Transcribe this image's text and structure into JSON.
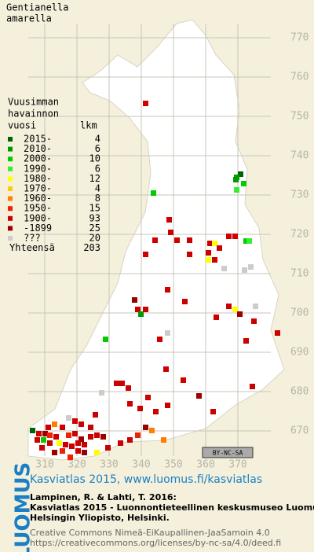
{
  "title": [
    "Gentianella",
    "amarella"
  ],
  "legend": {
    "heading": [
      "Vuusimman",
      "havainnon",
      "vuosi"
    ],
    "count_heading": "lkm",
    "entries": [
      {
        "label": "2015-",
        "count": 4,
        "color": "#006400"
      },
      {
        "label": "2010-",
        "count": 6,
        "color": "#009a00"
      },
      {
        "label": "2000-",
        "count": 10,
        "color": "#00cc00"
      },
      {
        "label": "1990-",
        "count": 6,
        "color": "#33ee33"
      },
      {
        "label": "1980-",
        "count": 12,
        "color": "#ffff00"
      },
      {
        "label": "1970-",
        "count": 4,
        "color": "#ffcc00"
      },
      {
        "label": "1960-",
        "count": 8,
        "color": "#ff8000"
      },
      {
        "label": "1950-",
        "count": 15,
        "color": "#ee2200"
      },
      {
        "label": "1900-",
        "count": 93,
        "color": "#cc0000"
      },
      {
        "label": "-1899",
        "count": 25,
        "color": "#990000"
      },
      {
        "label": "???",
        "count": 20,
        "color": "#cccccc"
      }
    ],
    "total_label": "Yhteensä",
    "total": 203
  },
  "grid": {
    "northing": [
      770,
      760,
      750,
      740,
      730,
      720,
      710,
      700,
      690,
      680,
      670
    ],
    "easting": [
      310,
      320,
      330,
      340,
      350,
      360,
      370
    ]
  },
  "license_badge": "BY-NC-SA",
  "footer": {
    "brand": "LUOMUS",
    "atlas": "Kasviatlas 2015, www.luomus.fi/kasviatlas",
    "citation": [
      "Lampinen, R. & Lahti, T. 2016:",
      "Kasviatlas 2015 - Luonnontieteellinen keskusmuseo Luomus,",
      "Helsingin Yliopisto, Helsinki."
    ],
    "license": [
      "Creative Commons Nimeä-EiKaupallinen-JaaSamoin 4.0",
      "https://creativecommons.org/licenses/by-nc-sa/4.0/deed.fi"
    ]
  }
}
